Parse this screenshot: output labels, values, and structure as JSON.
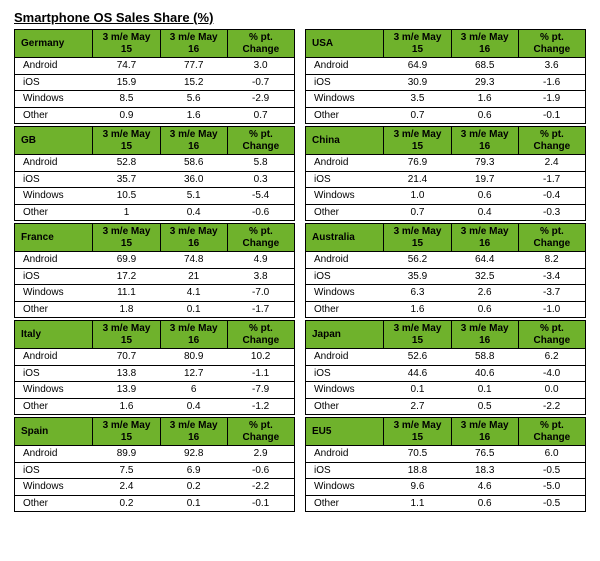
{
  "title": "Smartphone OS Sales Share (%)",
  "headers": {
    "col1": "3 m/e May 15",
    "col2": "3 m/e May 16",
    "col3": "% pt. Change"
  },
  "header_bg": "#6fb22c",
  "border_color": "#000000",
  "os_labels": [
    "Android",
    "iOS",
    "Windows",
    "Other"
  ],
  "left": [
    {
      "country": "Germany",
      "rows": [
        [
          "Android",
          "74.7",
          "77.7",
          "3.0"
        ],
        [
          "iOS",
          "15.9",
          "15.2",
          "-0.7"
        ],
        [
          "Windows",
          "8.5",
          "5.6",
          "-2.9"
        ],
        [
          "Other",
          "0.9",
          "1.6",
          "0.7"
        ]
      ]
    },
    {
      "country": "GB",
      "rows": [
        [
          "Android",
          "52.8",
          "58.6",
          "5.8"
        ],
        [
          "iOS",
          "35.7",
          "36.0",
          "0.3"
        ],
        [
          "Windows",
          "10.5",
          "5.1",
          "-5.4"
        ],
        [
          "Other",
          "1",
          "0.4",
          "-0.6"
        ]
      ]
    },
    {
      "country": "France",
      "rows": [
        [
          "Android",
          "69.9",
          "74.8",
          "4.9"
        ],
        [
          "iOS",
          "17.2",
          "21",
          "3.8"
        ],
        [
          "Windows",
          "11.1",
          "4.1",
          "-7.0"
        ],
        [
          "Other",
          "1.8",
          "0.1",
          "-1.7"
        ]
      ]
    },
    {
      "country": "Italy",
      "rows": [
        [
          "Android",
          "70.7",
          "80.9",
          "10.2"
        ],
        [
          "iOS",
          "13.8",
          "12.7",
          "-1.1"
        ],
        [
          "Windows",
          "13.9",
          "6",
          "-7.9"
        ],
        [
          "Other",
          "1.6",
          "0.4",
          "-1.2"
        ]
      ]
    },
    {
      "country": "Spain",
      "rows": [
        [
          "Android",
          "89.9",
          "92.8",
          "2.9"
        ],
        [
          "iOS",
          "7.5",
          "6.9",
          "-0.6"
        ],
        [
          "Windows",
          "2.4",
          "0.2",
          "-2.2"
        ],
        [
          "Other",
          "0.2",
          "0.1",
          "-0.1"
        ]
      ]
    }
  ],
  "right": [
    {
      "country": "USA",
      "rows": [
        [
          "Android",
          "64.9",
          "68.5",
          "3.6"
        ],
        [
          "iOS",
          "30.9",
          "29.3",
          "-1.6"
        ],
        [
          "Windows",
          "3.5",
          "1.6",
          "-1.9"
        ],
        [
          "Other",
          "0.7",
          "0.6",
          "-0.1"
        ]
      ]
    },
    {
      "country": "China",
      "rows": [
        [
          "Android",
          "76.9",
          "79.3",
          "2.4"
        ],
        [
          "iOS",
          "21.4",
          "19.7",
          "-1.7"
        ],
        [
          "Windows",
          "1.0",
          "0.6",
          "-0.4"
        ],
        [
          "Other",
          "0.7",
          "0.4",
          "-0.3"
        ]
      ]
    },
    {
      "country": "Australia",
      "rows": [
        [
          "Android",
          "56.2",
          "64.4",
          "8.2"
        ],
        [
          "iOS",
          "35.9",
          "32.5",
          "-3.4"
        ],
        [
          "Windows",
          "6.3",
          "2.6",
          "-3.7"
        ],
        [
          "Other",
          "1.6",
          "0.6",
          "-1.0"
        ]
      ]
    },
    {
      "country": "Japan",
      "rows": [
        [
          "Android",
          "52.6",
          "58.8",
          "6.2"
        ],
        [
          "iOS",
          "44.6",
          "40.6",
          "-4.0"
        ],
        [
          "Windows",
          "0.1",
          "0.1",
          "0.0"
        ],
        [
          "Other",
          "2.7",
          "0.5",
          "-2.2"
        ]
      ]
    },
    {
      "country": "EU5",
      "rows": [
        [
          "Android",
          "70.5",
          "76.5",
          "6.0"
        ],
        [
          "iOS",
          "18.8",
          "18.3",
          "-0.5"
        ],
        [
          "Windows",
          "9.6",
          "4.6",
          "-5.0"
        ],
        [
          "Other",
          "1.1",
          "0.6",
          "-0.5"
        ]
      ]
    }
  ]
}
